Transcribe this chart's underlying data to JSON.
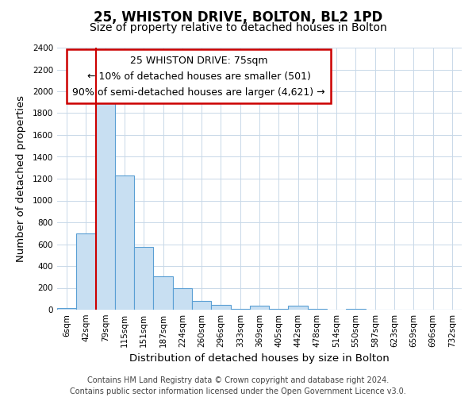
{
  "title": "25, WHISTON DRIVE, BOLTON, BL2 1PD",
  "subtitle": "Size of property relative to detached houses in Bolton",
  "xlabel": "Distribution of detached houses by size in Bolton",
  "ylabel": "Number of detached properties",
  "bar_labels": [
    "6sqm",
    "42sqm",
    "79sqm",
    "115sqm",
    "151sqm",
    "187sqm",
    "224sqm",
    "260sqm",
    "296sqm",
    "333sqm",
    "369sqm",
    "405sqm",
    "442sqm",
    "478sqm",
    "514sqm",
    "550sqm",
    "587sqm",
    "623sqm",
    "659sqm",
    "696sqm",
    "732sqm"
  ],
  "bar_values": [
    15,
    700,
    1950,
    1230,
    575,
    305,
    200,
    80,
    45,
    10,
    35,
    5,
    40,
    5,
    0,
    5,
    0,
    0,
    0,
    0,
    0
  ],
  "bar_color": "#c8dff2",
  "bar_edge_color": "#5a9fd4",
  "ylim": [
    0,
    2400
  ],
  "yticks": [
    0,
    200,
    400,
    600,
    800,
    1000,
    1200,
    1400,
    1600,
    1800,
    2000,
    2200,
    2400
  ],
  "vline_color": "#cc0000",
  "vline_index": 2,
  "annotation_title": "25 WHISTON DRIVE: 75sqm",
  "annotation_line1": "← 10% of detached houses are smaller (501)",
  "annotation_line2": "90% of semi-detached houses are larger (4,621) →",
  "footer_line1": "Contains HM Land Registry data © Crown copyright and database right 2024.",
  "footer_line2": "Contains public sector information licensed under the Open Government Licence v3.0.",
  "title_fontsize": 12,
  "subtitle_fontsize": 10,
  "axis_label_fontsize": 9.5,
  "tick_fontsize": 7.5,
  "annotation_title_fontsize": 9.5,
  "annotation_body_fontsize": 9,
  "footer_fontsize": 7,
  "background_color": "#ffffff",
  "grid_color": "#c8d8e8"
}
